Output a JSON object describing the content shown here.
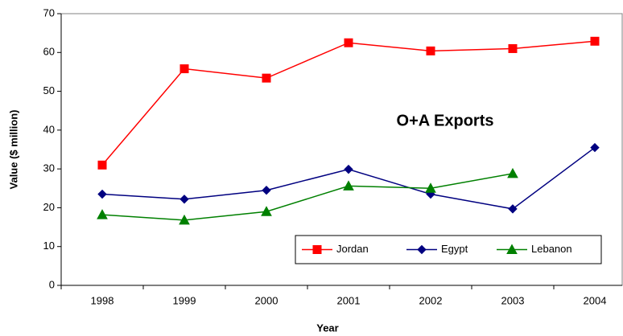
{
  "chart_data": {
    "type": "line",
    "annotation": "O+A Exports",
    "xlabel": "Year",
    "ylabel": "Value ($ million)",
    "categories": [
      "1998",
      "1999",
      "2000",
      "2001",
      "2002",
      "2003",
      "2004"
    ],
    "series": [
      {
        "name": "Jordan",
        "color": "#ff0000",
        "marker": "square",
        "values": [
          31,
          55.8,
          53.4,
          62.5,
          60.4,
          61,
          62.9
        ]
      },
      {
        "name": "Egypt",
        "color": "#000080",
        "marker": "diamond",
        "values": [
          23.5,
          22.2,
          24.5,
          29.9,
          23.5,
          19.7,
          35.5
        ]
      },
      {
        "name": "Lebanon",
        "color": "#008000",
        "marker": "triangle",
        "values": [
          18.2,
          16.8,
          19,
          25.6,
          25,
          28.8,
          null
        ]
      }
    ],
    "ylim": [
      0,
      70
    ],
    "yticks": [
      0,
      10,
      20,
      30,
      40,
      50,
      60,
      70
    ],
    "legend": "lower right"
  }
}
